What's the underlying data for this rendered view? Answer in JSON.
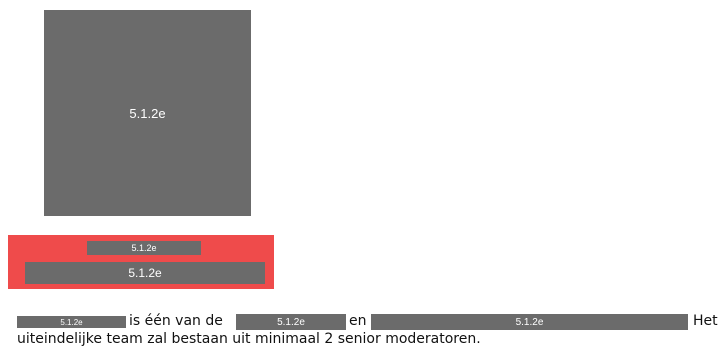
{
  "image_block": {
    "label": "5.1.2e"
  },
  "banner": {
    "top_label": "5.1.2e",
    "bottom_label": "5.1.2e"
  },
  "paragraph": {
    "redaction_1": "5.1.2e",
    "text_1": "is één van de",
    "redaction_2": "5.1.2e",
    "text_2": "en",
    "redaction_3": "5.1.2e",
    "text_3": "Het",
    "line_2": "uiteindelijke team zal bestaan uit minimaal 2 senior moderatoren."
  }
}
